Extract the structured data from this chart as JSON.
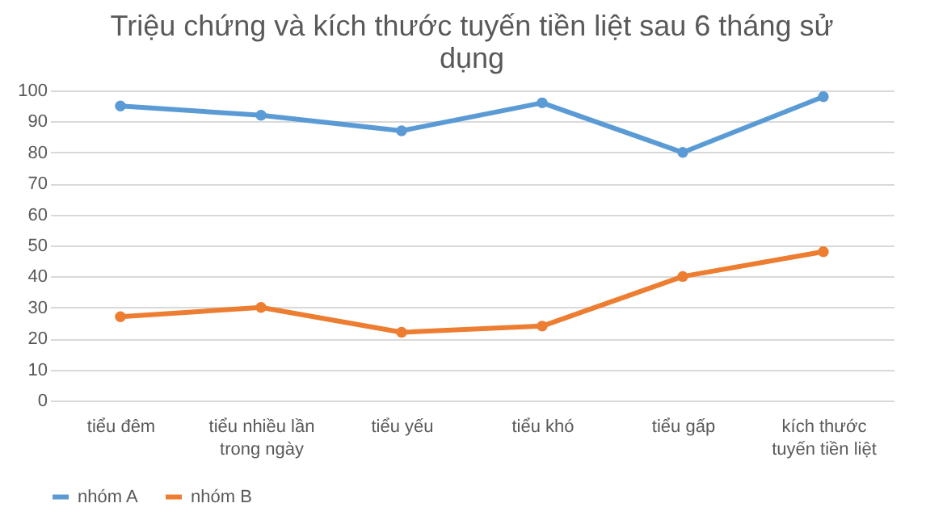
{
  "chart_data": {
    "type": "line",
    "title": "Triệu chứng và kích thước tuyến tiền liệt sau 6 tháng sử dụng",
    "categories": [
      "tiểu đêm",
      "tiểu nhiều lần trong ngày",
      "tiểu yếu",
      "tiểu khó",
      "tiểu gấp",
      "kích thước tuyến tiền liệt"
    ],
    "series": [
      {
        "name": "nhóm A",
        "color": "#5b9bd5",
        "values": [
          95,
          92,
          87,
          96,
          80,
          98
        ]
      },
      {
        "name": "nhóm B",
        "color": "#ed7d31",
        "values": [
          27,
          30,
          22,
          24,
          40,
          48
        ]
      }
    ],
    "ylim": [
      0,
      100
    ],
    "yticks": [
      0,
      10,
      20,
      30,
      40,
      50,
      60,
      70,
      80,
      90,
      100
    ],
    "grid": "y",
    "legend": "bottom",
    "marker": "circle",
    "line_style": "solid"
  }
}
